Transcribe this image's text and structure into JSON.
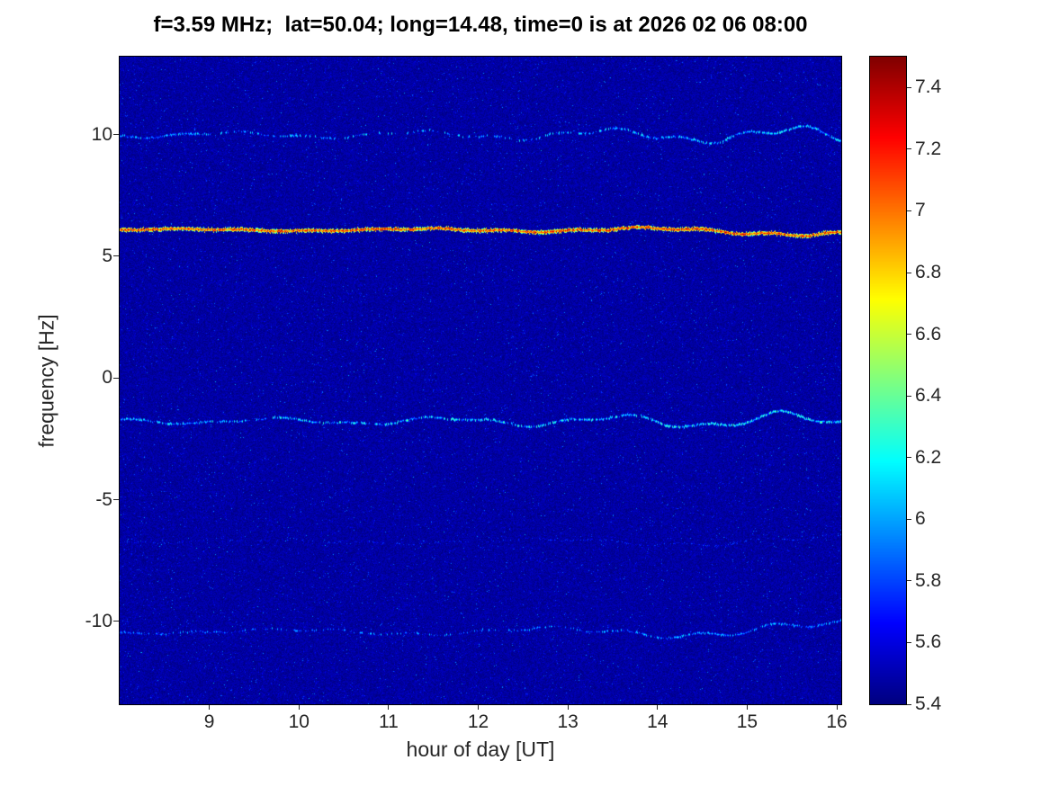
{
  "chart_data": {
    "type": "heatmap",
    "title": "f=3.59 MHz;  lat=50.04; long=14.48, time=0 is at 2026 02 06 08:00",
    "xlabel": "hour of day [UT]",
    "ylabel": "frequency [Hz]",
    "x_range": [
      8.0,
      16.05
    ],
    "y_range": [
      -13.4,
      13.2
    ],
    "x_ticks": [
      9,
      10,
      11,
      12,
      13,
      14,
      15,
      16
    ],
    "y_ticks": [
      10,
      5,
      0,
      -5,
      -10
    ],
    "grid": false,
    "legend": "none",
    "colormap": "jet",
    "color_scale": {
      "min": 5.4,
      "max": 7.5,
      "ticks": [
        7.4,
        7.2,
        7.0,
        6.8,
        6.6,
        6.4,
        6.2,
        6.0,
        5.8,
        5.6,
        5.4
      ],
      "tick_labels": [
        "7.4",
        "7.2",
        "7",
        "6.8",
        "6.6",
        "6.4",
        "6.2",
        "6",
        "5.8",
        "5.6",
        "5.4"
      ]
    },
    "background_noise": {
      "base_value": 5.4,
      "noise_span": 0.14,
      "speckle_probability": 0.045,
      "speckle_max": 0.55
    },
    "spectral_lines": [
      {
        "name": "carrier-doppler-line",
        "y_hz": 6.1,
        "intensity": 7.15,
        "intensity_var": 0.25,
        "intensity_end_boost": 0,
        "wander_hz": 0.06,
        "end_drift_hz": -0.18,
        "halo": 0.5,
        "visibility_profile": [
          1,
          1,
          1,
          1,
          1,
          1,
          1,
          1,
          1
        ]
      },
      {
        "name": "upper-trace-10hz",
        "y_hz": 10.0,
        "intensity": 5.95,
        "intensity_var": 0.3,
        "intensity_end_boost": 0.15,
        "wander_hz": 0.16,
        "end_drift_hz": -0.05,
        "halo": 0,
        "visibility_profile": [
          0.75,
          0.5,
          0.3,
          0.25,
          0.3,
          0.45,
          0.7,
          0.85,
          0.9
        ]
      },
      {
        "name": "lower-trace-minus1p7hz",
        "y_hz": -1.75,
        "intensity": 6.05,
        "intensity_var": 0.3,
        "intensity_end_boost": 0.15,
        "wander_hz": 0.16,
        "end_drift_hz": 0,
        "halo": 0,
        "visibility_profile": [
          0.8,
          0.7,
          0.65,
          0.7,
          0.75,
          0.8,
          0.85,
          0.95,
          0.95
        ]
      },
      {
        "name": "faint-trace-minus6p7hz",
        "y_hz": -6.7,
        "intensity": 5.7,
        "intensity_var": 0.12,
        "intensity_end_boost": 0.05,
        "wander_hz": 0.1,
        "end_drift_hz": 0,
        "halo": 0,
        "visibility_profile": [
          0.3,
          0.25,
          0.2,
          0.2,
          0.25,
          0.3,
          0.3,
          0.35,
          0.4
        ]
      },
      {
        "name": "lower-trace-minus10hz",
        "y_hz": -10.4,
        "intensity": 5.9,
        "intensity_var": 0.25,
        "intensity_end_boost": 0.1,
        "wander_hz": 0.14,
        "end_drift_hz": 0.1,
        "halo": 0,
        "visibility_profile": [
          0.5,
          0.4,
          0.35,
          0.35,
          0.4,
          0.5,
          0.6,
          0.75,
          0.8
        ]
      }
    ]
  }
}
